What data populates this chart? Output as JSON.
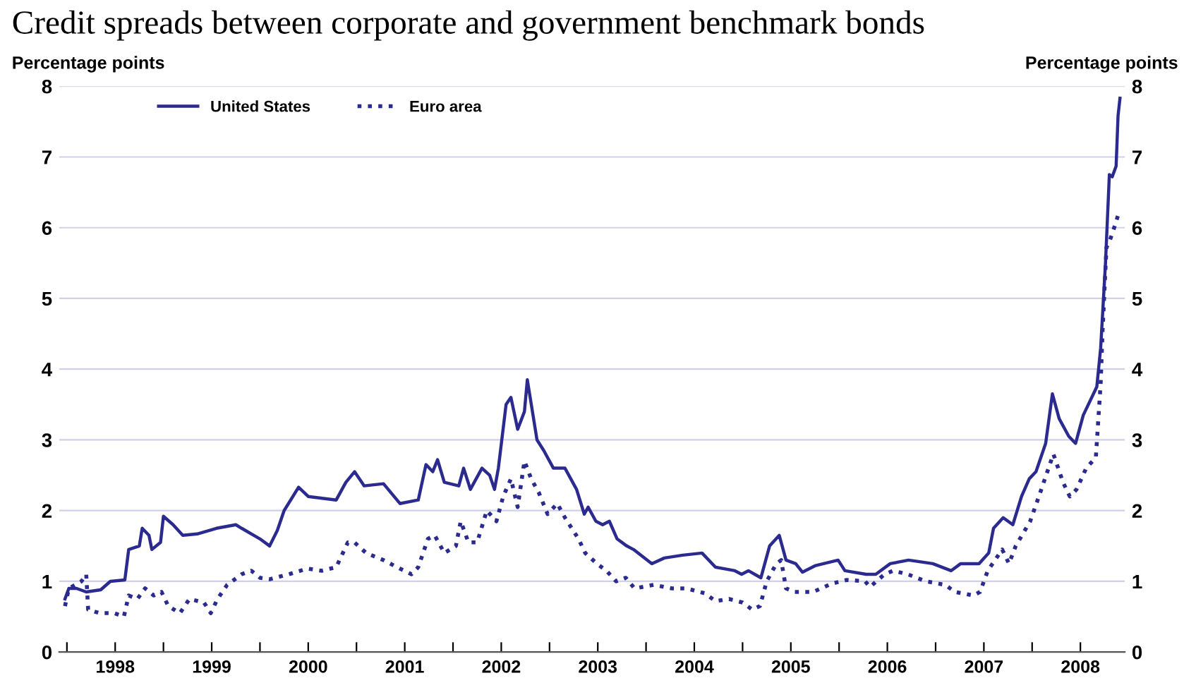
{
  "chart_data": {
    "type": "line",
    "title": "Credit spreads between corporate and government benchmark bonds",
    "ylabel": "Percentage points",
    "y2label": "Percentage points",
    "xlim": [
      1997.92,
      2008.96
    ],
    "ylim": [
      0,
      8
    ],
    "y2lim": [
      0,
      8
    ],
    "yticks": [
      0,
      1,
      2,
      3,
      4,
      5,
      6,
      7,
      8
    ],
    "y2ticks": [
      0,
      1,
      2,
      3,
      4,
      5,
      6,
      7,
      8
    ],
    "xticks": [
      {
        "value": 1998,
        "label": null
      },
      {
        "value": 1998.5,
        "label": "1998"
      },
      {
        "value": 1999,
        "label": null
      },
      {
        "value": 1999.5,
        "label": "1999"
      },
      {
        "value": 2000,
        "label": null
      },
      {
        "value": 2000.5,
        "label": "2000"
      },
      {
        "value": 2001,
        "label": null
      },
      {
        "value": 2001.5,
        "label": "2001"
      },
      {
        "value": 2002,
        "label": null
      },
      {
        "value": 2002.5,
        "label": "2002"
      },
      {
        "value": 2003,
        "label": null
      },
      {
        "value": 2003.5,
        "label": "2003"
      },
      {
        "value": 2004,
        "label": null
      },
      {
        "value": 2004.5,
        "label": "2004"
      },
      {
        "value": 2005,
        "label": null
      },
      {
        "value": 2005.5,
        "label": "2005"
      },
      {
        "value": 2006,
        "label": null
      },
      {
        "value": 2006.5,
        "label": "2006"
      },
      {
        "value": 2007,
        "label": null
      },
      {
        "value": 2007.5,
        "label": "2007"
      },
      {
        "value": 2008,
        "label": null
      },
      {
        "value": 2008.5,
        "label": "2008"
      }
    ],
    "grid": "y",
    "legend": "top left",
    "series": [
      {
        "name": "United States",
        "color": "#2b2a8f",
        "line_style": "solid",
        "x": [
          1997.98,
          1998.02,
          1998.1,
          1998.2,
          1998.35,
          1998.45,
          1998.6,
          1998.64,
          1998.75,
          1998.78,
          1998.85,
          1998.88,
          1998.97,
          1999.0,
          1999.1,
          1999.2,
          1999.35,
          1999.55,
          1999.75,
          1999.81,
          2000.0,
          2000.1,
          2000.18,
          2000.25,
          2000.4,
          2000.5,
          2000.79,
          2000.89,
          2000.98,
          2001.08,
          2001.28,
          2001.45,
          2001.64,
          2001.72,
          2001.79,
          2001.84,
          2001.91,
          2002.06,
          2002.11,
          2002.18,
          2002.3,
          2002.38,
          2002.43,
          2002.47,
          2002.55,
          2002.6,
          2002.67,
          2002.74,
          2002.77,
          2002.87,
          2002.94,
          2003.04,
          2003.16,
          2003.28,
          2003.36,
          2003.4,
          2003.48,
          2003.55,
          2003.62,
          2003.7,
          2003.8,
          2003.87,
          2004.06,
          2004.19,
          2004.38,
          2004.58,
          2004.72,
          2004.92,
          2004.99,
          2005.06,
          2005.19,
          2005.28,
          2005.38,
          2005.45,
          2005.55,
          2005.62,
          2005.75,
          2005.99,
          2006.06,
          2006.28,
          2006.38,
          2006.53,
          2006.72,
          2006.97,
          2007.16,
          2007.26,
          2007.45,
          2007.55,
          2007.6,
          2007.7,
          2007.8,
          2007.89,
          2007.97,
          2008.04,
          2008.14,
          2008.21,
          2008.28,
          2008.38,
          2008.45,
          2008.53,
          2008.67,
          2008.71,
          2008.76,
          2008.8,
          2008.83,
          2008.87,
          2008.89,
          2008.91
        ],
        "values": [
          0.75,
          0.9,
          0.9,
          0.85,
          0.88,
          1.0,
          1.02,
          1.45,
          1.5,
          1.75,
          1.65,
          1.45,
          1.55,
          1.92,
          1.8,
          1.65,
          1.67,
          1.75,
          1.8,
          1.75,
          1.6,
          1.5,
          1.72,
          2.0,
          2.33,
          2.2,
          2.15,
          2.4,
          2.55,
          2.35,
          2.38,
          2.1,
          2.15,
          2.65,
          2.55,
          2.72,
          2.4,
          2.35,
          2.6,
          2.3,
          2.6,
          2.5,
          2.3,
          2.6,
          3.5,
          3.6,
          3.15,
          3.4,
          3.85,
          3.0,
          2.85,
          2.6,
          2.6,
          2.3,
          1.95,
          2.05,
          1.85,
          1.8,
          1.85,
          1.6,
          1.5,
          1.45,
          1.25,
          1.33,
          1.37,
          1.4,
          1.2,
          1.15,
          1.1,
          1.15,
          1.05,
          1.5,
          1.65,
          1.3,
          1.25,
          1.13,
          1.22,
          1.3,
          1.15,
          1.1,
          1.1,
          1.25,
          1.3,
          1.25,
          1.15,
          1.25,
          1.25,
          1.4,
          1.75,
          1.9,
          1.8,
          2.2,
          2.45,
          2.55,
          2.95,
          3.65,
          3.3,
          3.05,
          2.95,
          3.35,
          3.75,
          4.3,
          5.5,
          6.75,
          6.72,
          6.87,
          7.58,
          7.83
        ]
      },
      {
        "name": "Euro area",
        "color": "#2b2a8f",
        "line_style": "dotted",
        "x": [
          1997.98,
          1998.02,
          1998.15,
          1998.2,
          1998.22,
          1998.34,
          1998.49,
          1998.59,
          1998.64,
          1998.73,
          1998.81,
          1998.9,
          1998.98,
          1999.05,
          1999.17,
          1999.27,
          1999.42,
          1999.49,
          1999.56,
          1999.66,
          1999.81,
          1999.91,
          2000.0,
          2000.1,
          2000.3,
          2000.49,
          2000.64,
          2000.79,
          2000.91,
          2000.98,
          2001.1,
          2001.28,
          2001.42,
          2001.57,
          2001.64,
          2001.74,
          2001.81,
          2001.91,
          2002.03,
          2002.08,
          2002.16,
          2002.25,
          2002.35,
          2002.45,
          2002.52,
          2002.6,
          2002.67,
          2002.74,
          2002.81,
          2002.89,
          2002.98,
          2003.08,
          2003.16,
          2003.3,
          2003.37,
          2003.49,
          2003.59,
          2003.69,
          2003.79,
          2003.88,
          2004.08,
          2004.27,
          2004.42,
          2004.61,
          2004.72,
          2004.86,
          2005.0,
          2005.1,
          2005.18,
          2005.25,
          2005.35,
          2005.4,
          2005.45,
          2005.54,
          2005.73,
          2005.93,
          2006.08,
          2006.27,
          2006.32,
          2006.47,
          2006.56,
          2006.71,
          2006.9,
          2007.1,
          2007.2,
          2007.39,
          2007.46,
          2007.54,
          2007.69,
          2007.76,
          2007.83,
          2007.98,
          2008.07,
          2008.17,
          2008.22,
          2008.32,
          2008.39,
          2008.46,
          2008.56,
          2008.66,
          2008.71,
          2008.73,
          2008.77,
          2008.8,
          2008.85,
          2008.9
        ],
        "values": [
          0.65,
          0.9,
          1.0,
          1.1,
          0.6,
          0.55,
          0.55,
          0.5,
          0.8,
          0.75,
          0.9,
          0.8,
          0.85,
          0.65,
          0.55,
          0.75,
          0.7,
          0.55,
          0.75,
          0.95,
          1.1,
          1.15,
          1.05,
          1.03,
          1.1,
          1.18,
          1.15,
          1.2,
          1.55,
          1.55,
          1.4,
          1.3,
          1.2,
          1.1,
          1.2,
          1.6,
          1.65,
          1.4,
          1.5,
          1.85,
          1.55,
          1.55,
          2.0,
          1.85,
          2.2,
          2.45,
          2.05,
          2.7,
          2.45,
          2.25,
          1.95,
          2.1,
          1.9,
          1.6,
          1.4,
          1.25,
          1.15,
          1.0,
          1.05,
          0.9,
          0.95,
          0.9,
          0.9,
          0.83,
          0.72,
          0.75,
          0.7,
          0.6,
          0.65,
          1.0,
          1.25,
          1.3,
          0.9,
          0.85,
          0.85,
          0.97,
          1.02,
          1.0,
          0.92,
          1.1,
          1.15,
          1.1,
          1.0,
          0.95,
          0.85,
          0.8,
          0.85,
          1.15,
          1.45,
          1.25,
          1.5,
          1.85,
          2.2,
          2.6,
          2.8,
          2.4,
          2.2,
          2.3,
          2.6,
          2.75,
          3.8,
          4.55,
          5.72,
          5.8,
          6.0,
          6.22
        ]
      }
    ]
  }
}
